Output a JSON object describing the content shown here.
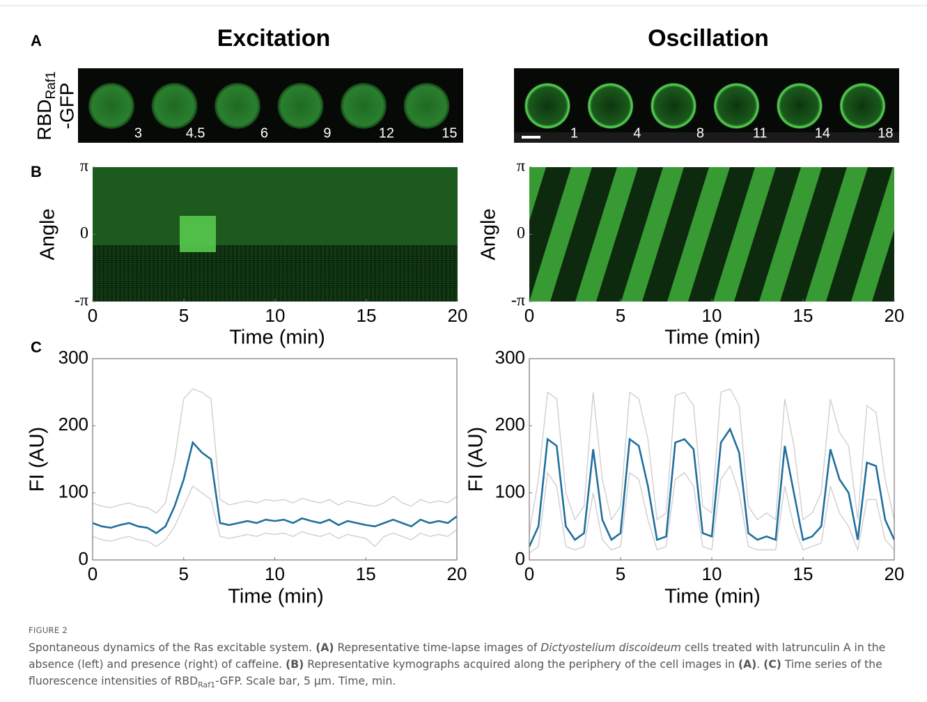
{
  "panel_labels": [
    "A",
    "B",
    "C"
  ],
  "panel_a": {
    "label_main": "RBD",
    "label_sub": "Raf1",
    "label_line2": "-GFP",
    "columns": [
      {
        "title": "Excitation",
        "times": [
          3,
          4.5,
          6,
          9,
          12,
          15
        ]
      },
      {
        "title": "Oscillation",
        "times": [
          1,
          4,
          8,
          11,
          14,
          18
        ]
      }
    ]
  },
  "chart_data": [
    {
      "type": "kymograph",
      "x_label": "Time (min)",
      "y_label": "Angle",
      "xlim": [
        0,
        20
      ],
      "xticks": [
        0,
        5,
        10,
        15,
        20
      ],
      "ylim": [
        -3.14159,
        3.14159
      ],
      "yticks": [
        {
          "value": 3.14159,
          "label": "π"
        },
        0,
        {
          "value": -3.14159,
          "label": "-π"
        }
      ]
    },
    {
      "type": "kymograph",
      "x_label": "Time (min)",
      "y_label": "Angle",
      "xlim": [
        0,
        20
      ],
      "xticks": [
        0,
        5,
        10,
        15,
        20
      ],
      "ylim": [
        -3.14159,
        3.14159
      ],
      "yticks": [
        {
          "value": 3.14159,
          "label": "π"
        },
        0,
        {
          "value": -3.14159,
          "label": "-π"
        }
      ]
    },
    {
      "type": "line",
      "x_label": "Time (min)",
      "y_label": "FI (AU)",
      "xlim": [
        0,
        20
      ],
      "xticks": [
        0,
        5,
        10,
        15,
        20
      ],
      "ylim": [
        0,
        300
      ],
      "yticks": [
        0,
        100,
        200,
        300
      ],
      "x": [
        0,
        0.5,
        1,
        1.5,
        2,
        2.5,
        3,
        3.5,
        4,
        4.5,
        5,
        5.5,
        6,
        6.5,
        7,
        7.5,
        8,
        8.5,
        9,
        9.5,
        10,
        10.5,
        11,
        11.5,
        12,
        12.5,
        13,
        13.5,
        14,
        14.5,
        15,
        15.5,
        16,
        16.5,
        17,
        17.5,
        18,
        18.5,
        19,
        19.5,
        20
      ],
      "series": [
        {
          "color": "#cfcfcf",
          "values": [
            85,
            80,
            78,
            82,
            85,
            80,
            78,
            70,
            85,
            150,
            240,
            255,
            250,
            240,
            90,
            82,
            85,
            88,
            85,
            90,
            88,
            90,
            85,
            92,
            88,
            85,
            90,
            82,
            88,
            85,
            82,
            80,
            85,
            95,
            85,
            80,
            90,
            85,
            88,
            85,
            95
          ]
        },
        {
          "color": "#cfcfcf",
          "values": [
            35,
            30,
            28,
            32,
            35,
            30,
            28,
            20,
            30,
            50,
            80,
            110,
            100,
            90,
            35,
            32,
            35,
            38,
            35,
            40,
            38,
            40,
            35,
            42,
            38,
            35,
            40,
            32,
            38,
            35,
            32,
            20,
            35,
            40,
            35,
            30,
            40,
            35,
            38,
            35,
            45
          ]
        },
        {
          "color": "#1f6f9c",
          "values": [
            55,
            50,
            48,
            52,
            55,
            50,
            48,
            40,
            50,
            80,
            120,
            175,
            160,
            150,
            55,
            52,
            55,
            58,
            55,
            60,
            58,
            60,
            55,
            62,
            58,
            55,
            60,
            52,
            58,
            55,
            52,
            50,
            55,
            60,
            55,
            50,
            60,
            55,
            58,
            55,
            65
          ]
        }
      ]
    },
    {
      "type": "line",
      "x_label": "Time (min)",
      "y_label": "FI (AU)",
      "xlim": [
        0,
        20
      ],
      "xticks": [
        0,
        5,
        10,
        15,
        20
      ],
      "ylim": [
        0,
        300
      ],
      "yticks": [
        0,
        100,
        200,
        300
      ],
      "x": [
        0,
        0.5,
        1,
        1.5,
        2,
        2.5,
        3,
        3.5,
        4,
        4.5,
        5,
        5.5,
        6,
        6.5,
        7,
        7.5,
        8,
        8.5,
        9,
        9.5,
        10,
        10.5,
        11,
        11.5,
        12,
        12.5,
        13,
        13.5,
        14,
        14.5,
        15,
        15.5,
        16,
        16.5,
        17,
        17.5,
        18,
        18.5,
        19,
        19.5,
        20
      ],
      "series": [
        {
          "color": "#cfcfcf",
          "values": [
            40,
            120,
            250,
            240,
            100,
            60,
            80,
            250,
            120,
            60,
            80,
            250,
            240,
            180,
            60,
            70,
            245,
            250,
            230,
            80,
            70,
            250,
            255,
            230,
            80,
            60,
            70,
            60,
            240,
            170,
            60,
            70,
            100,
            240,
            190,
            170,
            60,
            230,
            220,
            120,
            60
          ]
        },
        {
          "color": "#cfcfcf",
          "values": [
            10,
            20,
            130,
            110,
            20,
            15,
            20,
            100,
            30,
            15,
            20,
            130,
            120,
            60,
            15,
            20,
            120,
            130,
            110,
            20,
            15,
            120,
            140,
            100,
            20,
            15,
            15,
            15,
            110,
            50,
            15,
            20,
            25,
            110,
            70,
            50,
            15,
            90,
            90,
            30,
            15
          ]
        },
        {
          "color": "#1f6f9c",
          "values": [
            20,
            50,
            180,
            170,
            50,
            30,
            40,
            165,
            60,
            30,
            40,
            180,
            170,
            110,
            30,
            35,
            175,
            180,
            165,
            40,
            35,
            175,
            195,
            160,
            40,
            30,
            35,
            30,
            170,
            100,
            30,
            35,
            50,
            165,
            120,
            100,
            30,
            145,
            140,
            60,
            30
          ]
        }
      ]
    }
  ],
  "caption": {
    "figure": "FIGURE 2",
    "segments": [
      {
        "text": "Spontaneous dynamics of the Ras excitable system. "
      },
      {
        "text": "(A)",
        "style": "bold"
      },
      {
        "text": " Representative time-lapse images of "
      },
      {
        "text": "Dictyostelium discoideum",
        "style": "italic"
      },
      {
        "text": " cells treated with latrunculin A in the absence (left) and presence (right) of caffeine. "
      },
      {
        "text": "(B)",
        "style": "bold"
      },
      {
        "text": " Representative kymographs acquired along the periphery of the cell images in "
      },
      {
        "text": "(A)",
        "style": "bold"
      },
      {
        "text": ". "
      },
      {
        "text": "(C)",
        "style": "bold"
      },
      {
        "text": " Time series of the fluorescence intensities of RBD"
      },
      {
        "text": "Raf1",
        "style": "sub"
      },
      {
        "text": "-GFP. Scale bar, 5 µm. Time, min."
      }
    ]
  }
}
